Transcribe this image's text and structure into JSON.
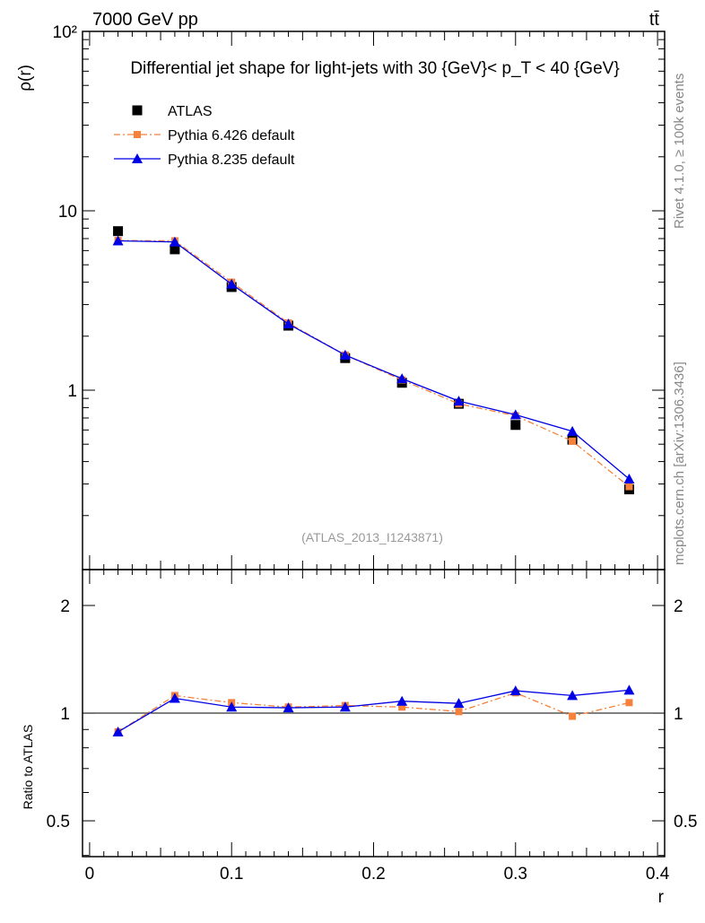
{
  "header": {
    "left": "7000 GeV pp",
    "right": "tt̄"
  },
  "side_labels": {
    "top": "Rivet 4.1.0, ≥ 100k events",
    "bottom": "mcplots.cern.ch [arXiv:1306.3436]"
  },
  "chart_data": [
    {
      "type": "line",
      "title": "Differential jet shape for light-jets with 30 {GeV}< p_T < 40 {GeV}",
      "xlabel": "r",
      "ylabel": "ρ(r)",
      "yscale": "log",
      "ylim": [
        0.1,
        100
      ],
      "xlim": [
        -0.005,
        0.405
      ],
      "ytick_labels": [
        {
          "v": 1,
          "t": "1"
        },
        {
          "v": 10,
          "t": "10"
        },
        {
          "v": 100,
          "t": "10²"
        }
      ],
      "watermark": "(ATLAS_2013_I1243871)",
      "legend_position": "top-left",
      "x": [
        0.02,
        0.06,
        0.1,
        0.14,
        0.18,
        0.22,
        0.26,
        0.3,
        0.34,
        0.38
      ],
      "series": [
        {
          "name": "ATLAS",
          "color": "#000000",
          "marker": "square",
          "values": [
            7.7,
            6.1,
            3.76,
            2.29,
            1.51,
            1.1,
            0.84,
            0.64,
            0.53,
            0.28
          ]
        },
        {
          "name": "Pythia 6.426 default",
          "color": "#f5813a",
          "marker": "small-square",
          "dash": "dashdot",
          "values": [
            6.83,
            6.8,
            4.0,
            2.37,
            1.57,
            1.14,
            0.84,
            0.72,
            0.52,
            0.29
          ]
        },
        {
          "name": "Pythia 8.235 default",
          "color": "#0000e6",
          "marker": "triangle",
          "values": [
            6.8,
            6.7,
            3.9,
            2.34,
            1.57,
            1.16,
            0.87,
            0.73,
            0.59,
            0.32
          ]
        }
      ]
    },
    {
      "type": "line",
      "ylabel": "Ratio to ATLAS",
      "xlabel": "r",
      "yscale": "log",
      "ylim": [
        0.397,
        2.52
      ],
      "ytick_labels": [
        {
          "v": 0.5,
          "t": "0.5"
        },
        {
          "v": 1,
          "t": "1"
        },
        {
          "v": 2,
          "t": "2"
        }
      ],
      "xtick_labels": [
        {
          "v": 0,
          "t": "0"
        },
        {
          "v": 0.1,
          "t": "0.1"
        },
        {
          "v": 0.2,
          "t": "0.2"
        },
        {
          "v": 0.3,
          "t": "0.3"
        },
        {
          "v": 0.4,
          "t": "0.4"
        }
      ],
      "x": [
        0.02,
        0.06,
        0.1,
        0.14,
        0.18,
        0.22,
        0.26,
        0.3,
        0.34,
        0.38
      ],
      "series": [
        {
          "name": "Pythia 6.426 default",
          "color": "#f5813a",
          "values": [
            0.886,
            1.12,
            1.07,
            1.04,
            1.05,
            1.04,
            1.01,
            1.14,
            0.98,
            1.07
          ]
        },
        {
          "name": "Pythia 8.235 default",
          "color": "#0000e6",
          "values": [
            0.886,
            1.1,
            1.04,
            1.035,
            1.04,
            1.08,
            1.065,
            1.155,
            1.12,
            1.16
          ]
        }
      ]
    }
  ]
}
